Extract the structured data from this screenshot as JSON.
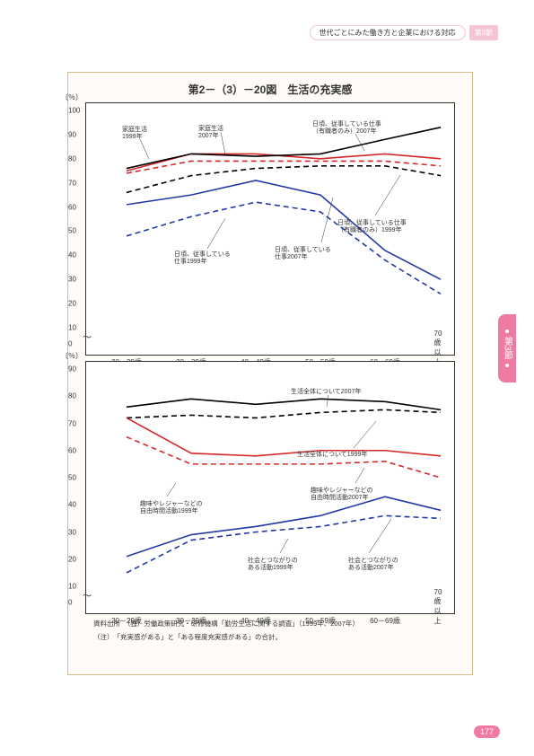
{
  "header": {
    "title": "世代ごとにみた働き方と企業における対応",
    "badge": "第3節"
  },
  "sideTab": "第3節",
  "pageNumber": "177",
  "figure": {
    "title": "第2－（3）－20図　生活の充実感",
    "sources": [
      "資料出所　（独）労働政策研究・研修機構「勤労生活に関する調査」（1999年、2007年）",
      "（注）　「充実感がある」と「ある程度充実感がある」の合計。"
    ]
  },
  "xaxis": {
    "categories": [
      "20－29歳",
      "30－39歳",
      "40－49歳",
      "50－59歳",
      "60－69歳",
      "70歳以上"
    ],
    "positions": [
      45,
      117,
      189,
      261,
      333,
      395
    ]
  },
  "chart1": {
    "yLabel": "（％）",
    "ymin": 0,
    "ymax": 100,
    "ytick_step": 10,
    "series": [
      {
        "key": "family2007",
        "label": "家庭生活\n2007年",
        "labelPos": [
          125,
          25
        ],
        "color": "#d62728",
        "dash": "",
        "data": [
          75,
          82,
          82,
          80,
          82,
          80
        ],
        "lead": [
          [
            150,
            32
          ],
          [
            155,
            57
          ]
        ]
      },
      {
        "key": "family1999",
        "label": "家庭生活\n1999年",
        "labelPos": [
          40,
          26
        ],
        "color": "#d62728",
        "dash": "6 4",
        "data": [
          74,
          79,
          79,
          79,
          79,
          77
        ],
        "lead": [
          [
            60,
            40
          ],
          [
            70,
            62
          ]
        ]
      },
      {
        "key": "workEmp2007",
        "label": "日頃、従事している仕事\n（有職者のみ）2007年",
        "labelPos": [
          252,
          20
        ],
        "color": "#000000",
        "dash": "",
        "data": [
          76,
          82,
          81,
          82,
          88,
          93
        ],
        "lead": [
          [
            300,
            34
          ],
          [
            310,
            53
          ]
        ]
      },
      {
        "key": "workEmp1999",
        "label": "日頃、従事している仕事\n（有職者のみ）1999年",
        "labelPos": [
          280,
          130
        ],
        "color": "#000000",
        "dash": "6 4",
        "data": [
          66,
          73,
          76,
          77,
          77,
          73
        ],
        "lead": [
          [
            322,
            125
          ],
          [
            350,
            80
          ]
        ]
      },
      {
        "key": "work2007",
        "label": "日頃、従事している\n仕事2007年",
        "labelPos": [
          210,
          160
        ],
        "color": "#2339a5",
        "dash": "",
        "data": [
          61,
          65,
          71,
          65,
          42,
          30
        ],
        "lead": [
          [
            262,
            155
          ],
          [
            275,
            105
          ]
        ]
      },
      {
        "key": "work1999",
        "label": "日頃、従事している\n仕事1999年",
        "labelPos": [
          98,
          165
        ],
        "color": "#2339a5",
        "dash": "6 4",
        "data": [
          48,
          56,
          62,
          58,
          38,
          24
        ],
        "lead": [
          [
            135,
            162
          ],
          [
            155,
            128
          ]
        ]
      }
    ]
  },
  "chart2": {
    "yLabel": "（％）",
    "ymin": 0,
    "ymax": 90,
    "ytick_step": 10,
    "series": [
      {
        "key": "life2007",
        "label": "生活全体について2007年",
        "labelPos": [
          228,
          30
        ],
        "color": "#000000",
        "dash": "",
        "data": [
          76,
          79,
          77,
          79,
          78,
          75
        ],
        "lead": [
          [
            270,
            37
          ],
          [
            268,
            50
          ]
        ]
      },
      {
        "key": "life1999",
        "label": "生活全体について1999年",
        "labelPos": [
          235,
          100
        ],
        "color": "#000000",
        "dash": "6 4",
        "data": [
          72,
          73,
          72,
          74,
          75,
          74
        ],
        "lead": [
          [
            298,
            96
          ],
          [
            323,
            66
          ]
        ]
      },
      {
        "key": "hobby2007",
        "label": "趣味やレジャーなどの\n自由時間活動2007年",
        "labelPos": [
          250,
          140
        ],
        "color": "#d62728",
        "dash": "",
        "data": [
          72,
          59,
          58,
          60,
          60,
          58
        ],
        "lead": [
          [
            300,
            135
          ],
          [
            310,
            118
          ]
        ]
      },
      {
        "key": "hobby1999",
        "label": "趣味やレジャーなどの\n自由時間活動1999年",
        "labelPos": [
          60,
          155
        ],
        "color": "#d62728",
        "dash": "6 4",
        "data": [
          65,
          55,
          55,
          55,
          56,
          50
        ],
        "lead": [
          [
            90,
            150
          ],
          [
            100,
            135
          ]
        ]
      },
      {
        "key": "social2007",
        "label": "社会とつながりの\nある活動2007年",
        "labelPos": [
          292,
          218
        ],
        "color": "#2339a5",
        "dash": "",
        "data": [
          21,
          29,
          32,
          36,
          43,
          38
        ],
        "lead": [
          [
            315,
            213
          ],
          [
            340,
            175
          ]
        ]
      },
      {
        "key": "social1999",
        "label": "社会とつながりの\nある活動1999年",
        "labelPos": [
          180,
          218
        ],
        "color": "#2339a5",
        "dash": "6 4",
        "data": [
          15,
          27,
          30,
          32,
          36,
          35
        ],
        "lead": [
          [
            216,
            213
          ],
          [
            225,
            197
          ]
        ]
      }
    ]
  },
  "colors": {
    "frame": "#dabc8a",
    "background": "#fffcf7"
  }
}
